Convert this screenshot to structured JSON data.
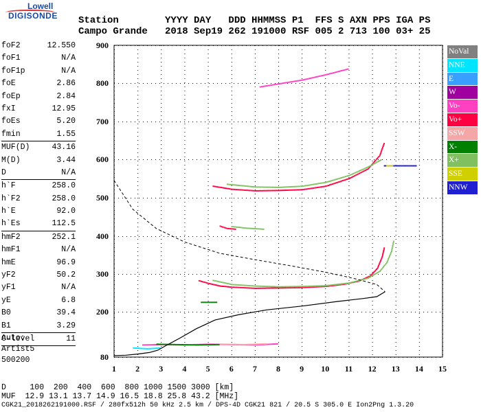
{
  "logo": {
    "line1": "Lowell",
    "line2": "DIGISONDE"
  },
  "header": {
    "row1": "Station        YYYY DAY   DDD HHMMSS P1  FFS S AXN PPS IGA PS",
    "row2": "Campo Grande   2018 Sep19 262 191000 RSF 005 2 713 100 03+ 25"
  },
  "params": [
    {
      "name": "foF2",
      "value": "12.550"
    },
    {
      "name": "foF1",
      "value": "N/A"
    },
    {
      "name": "foF1p",
      "value": "N/A"
    },
    {
      "name": "foE",
      "value": "2.86"
    },
    {
      "name": "foEp",
      "value": "2.84"
    },
    {
      "name": "fxI",
      "value": "12.95"
    },
    {
      "name": "foEs",
      "value": "5.20"
    },
    {
      "name": "fmin",
      "value": "1.55",
      "sep": true
    },
    {
      "name": "MUF(D)",
      "value": "43.16"
    },
    {
      "name": "M(D)",
      "value": "3.44"
    },
    {
      "name": "D",
      "value": "N/A",
      "sep": true
    },
    {
      "name": "h`F",
      "value": "258.0"
    },
    {
      "name": "h`F2",
      "value": "258.0"
    },
    {
      "name": "h`E",
      "value": "92.0"
    },
    {
      "name": "h`Es",
      "value": "112.5",
      "sep": true
    },
    {
      "name": "hmF2",
      "value": "252.1"
    },
    {
      "name": "hmF1",
      "value": "N/A"
    },
    {
      "name": "hmE",
      "value": "96.9"
    },
    {
      "name": "yF2",
      "value": "50.2"
    },
    {
      "name": "yF1",
      "value": "N/A"
    },
    {
      "name": "yE",
      "value": "6.8"
    },
    {
      "name": "B0",
      "value": "39.4"
    },
    {
      "name": "B1",
      "value": "3.29",
      "sep": true
    },
    {
      "name": "C-level",
      "value": "11",
      "sep": true
    }
  ],
  "auto": {
    "line1": "Auto:",
    "line2": "Artist5",
    "line3": "500200"
  },
  "legend": [
    {
      "label": "NoVal",
      "color": "#808080"
    },
    {
      "label": "NNE",
      "color": "#00e5ff"
    },
    {
      "label": "E",
      "color": "#3aa0ff"
    },
    {
      "label": "W",
      "color": "#a000a0"
    },
    {
      "label": "Vo-",
      "color": "#ff40c0"
    },
    {
      "label": "Vo+",
      "color": "#ff0040"
    },
    {
      "label": "SSW",
      "color": "#f5a6a6"
    },
    {
      "label": "X-",
      "color": "#008000"
    },
    {
      "label": "X+",
      "color": "#80c060"
    },
    {
      "label": "SSE",
      "color": "#d0d000"
    },
    {
      "label": "NNW",
      "color": "#2020d0"
    }
  ],
  "footer": {
    "d_row": "D     100  200  400  600  800 1000 1500 3000 [km]",
    "muf_row": "MUF  12.9 13.1 13.7 14.9 16.5 18.8 25.8 43.2 [MHz]",
    "info_row": "CGK21_2018262191000.RSF / 280fx512h 50 kHz 2.5 km / DPS-4D CGK21 821 / 20.5 S 305.0 E Ion2Png 1.3.20"
  },
  "chart_data": {
    "type": "scatter",
    "title": "",
    "xlabel": "",
    "ylabel": "",
    "xlim": [
      1,
      15
    ],
    "ylim": [
      80,
      900
    ],
    "xticks": [
      1,
      2,
      3,
      4,
      5,
      6,
      7,
      8,
      9,
      10,
      11,
      12,
      13,
      14,
      15
    ],
    "yticks": [
      80,
      200,
      300,
      400,
      500,
      600,
      700,
      800,
      900
    ],
    "yscale": "nonlinear",
    "series": [
      {
        "legend": "Vo+",
        "color": "#ff0040",
        "trace": [
          [
            4.6,
            282
          ],
          [
            5.0,
            275
          ],
          [
            5.5,
            268
          ],
          [
            6,
            265
          ],
          [
            7,
            262
          ],
          [
            8,
            263
          ],
          [
            9,
            264
          ],
          [
            10,
            267
          ],
          [
            10.8,
            273
          ],
          [
            11.4,
            281
          ],
          [
            11.9,
            295
          ],
          [
            12.2,
            315
          ],
          [
            12.4,
            345
          ],
          [
            12.5,
            372
          ]
        ]
      },
      {
        "legend": "X+",
        "color": "#80c060",
        "trace": [
          [
            5.2,
            283
          ],
          [
            6,
            272
          ],
          [
            7,
            268
          ],
          [
            8,
            266
          ],
          [
            9,
            267
          ],
          [
            10,
            269
          ],
          [
            11,
            276
          ],
          [
            11.8,
            289
          ],
          [
            12.3,
            307
          ],
          [
            12.6,
            330
          ],
          [
            12.8,
            360
          ],
          [
            12.9,
            390
          ]
        ]
      },
      {
        "legend": "Vo+",
        "color": "#ff0040",
        "trace": [
          [
            5.2,
            530
          ],
          [
            6,
            522
          ],
          [
            7,
            518
          ],
          [
            8,
            519
          ],
          [
            9,
            521
          ],
          [
            10,
            530
          ],
          [
            11,
            550
          ],
          [
            11.8,
            575
          ],
          [
            12.3,
            610
          ],
          [
            12.5,
            645
          ]
        ]
      },
      {
        "legend": "X+",
        "color": "#80c060",
        "trace": [
          [
            5.8,
            535
          ],
          [
            7,
            528
          ],
          [
            8,
            527
          ],
          [
            9,
            530
          ],
          [
            10,
            540
          ],
          [
            11,
            558
          ],
          [
            11.8,
            580
          ],
          [
            12.4,
            600
          ]
        ]
      },
      {
        "legend": "Vo+",
        "color": "#ff0040",
        "trace": [
          [
            5.5,
            426
          ],
          [
            5.8,
            420
          ],
          [
            6.2,
            418
          ]
        ]
      },
      {
        "legend": "X+",
        "color": "#80c060",
        "trace": [
          [
            6,
            425
          ],
          [
            6.6,
            421
          ],
          [
            7.4,
            418
          ]
        ]
      },
      {
        "legend": "Vo-",
        "color": "#ff40c0",
        "trace": [
          [
            7.2,
            790
          ],
          [
            8,
            798
          ],
          [
            9,
            808
          ],
          [
            10,
            822
          ],
          [
            11,
            838
          ]
        ]
      },
      {
        "legend": "X-",
        "color": "#008000",
        "trace": [
          [
            4.7,
            225
          ],
          [
            5.4,
            225
          ]
        ]
      },
      {
        "legend": "Vo-",
        "color": "#ff40c0",
        "trace": [
          [
            2.2,
            112
          ],
          [
            3,
            113
          ],
          [
            4,
            112
          ],
          [
            5,
            114
          ],
          [
            6,
            113
          ],
          [
            7,
            112
          ],
          [
            8,
            115
          ]
        ]
      },
      {
        "legend": "X-",
        "color": "#008000",
        "trace": [
          [
            2.8,
            114
          ],
          [
            3.6,
            113
          ],
          [
            4.5,
            112
          ],
          [
            5.5,
            113
          ]
        ]
      },
      {
        "legend": "NNE",
        "color": "#00e5ff",
        "trace": [
          [
            1.8,
            104
          ],
          [
            2.4,
            102
          ],
          [
            3.0,
            104
          ]
        ]
      },
      {
        "legend": "SSW",
        "color": "#f5a6a6",
        "trace": [
          [
            5.5,
            114
          ],
          [
            6.5,
            113
          ],
          [
            7.5,
            115
          ]
        ]
      },
      {
        "legend": "NNW",
        "color": "#2020d0",
        "trace": [
          [
            12.5,
            583
          ],
          [
            13,
            583
          ],
          [
            13.5,
            583
          ],
          [
            13.9,
            583
          ]
        ]
      },
      {
        "legend": "SSE",
        "color": "#d0d000",
        "trace": [
          [
            12.6,
            583
          ],
          [
            12.9,
            583
          ]
        ]
      }
    ],
    "profile": [
      [
        1.0,
        84
      ],
      [
        1.5,
        85
      ],
      [
        2.0,
        88
      ],
      [
        2.5,
        92
      ],
      [
        2.86,
        98
      ],
      [
        3.2,
        110
      ],
      [
        3.8,
        130
      ],
      [
        4.5,
        155
      ],
      [
        5.3,
        178
      ],
      [
        6.3,
        192
      ],
      [
        7.5,
        205
      ],
      [
        9,
        215
      ],
      [
        10.5,
        227
      ],
      [
        11.6,
        235
      ],
      [
        12.2,
        240
      ],
      [
        12.55,
        253
      ]
    ],
    "dashed": [
      [
        1.0,
        545
      ],
      [
        1.8,
        470
      ],
      [
        2.8,
        420
      ],
      [
        4,
        385
      ],
      [
        5.5,
        355
      ],
      [
        7,
        338
      ],
      [
        8.5,
        322
      ],
      [
        10,
        305
      ],
      [
        11.3,
        287
      ],
      [
        12.2,
        272
      ],
      [
        12.55,
        253
      ]
    ]
  }
}
